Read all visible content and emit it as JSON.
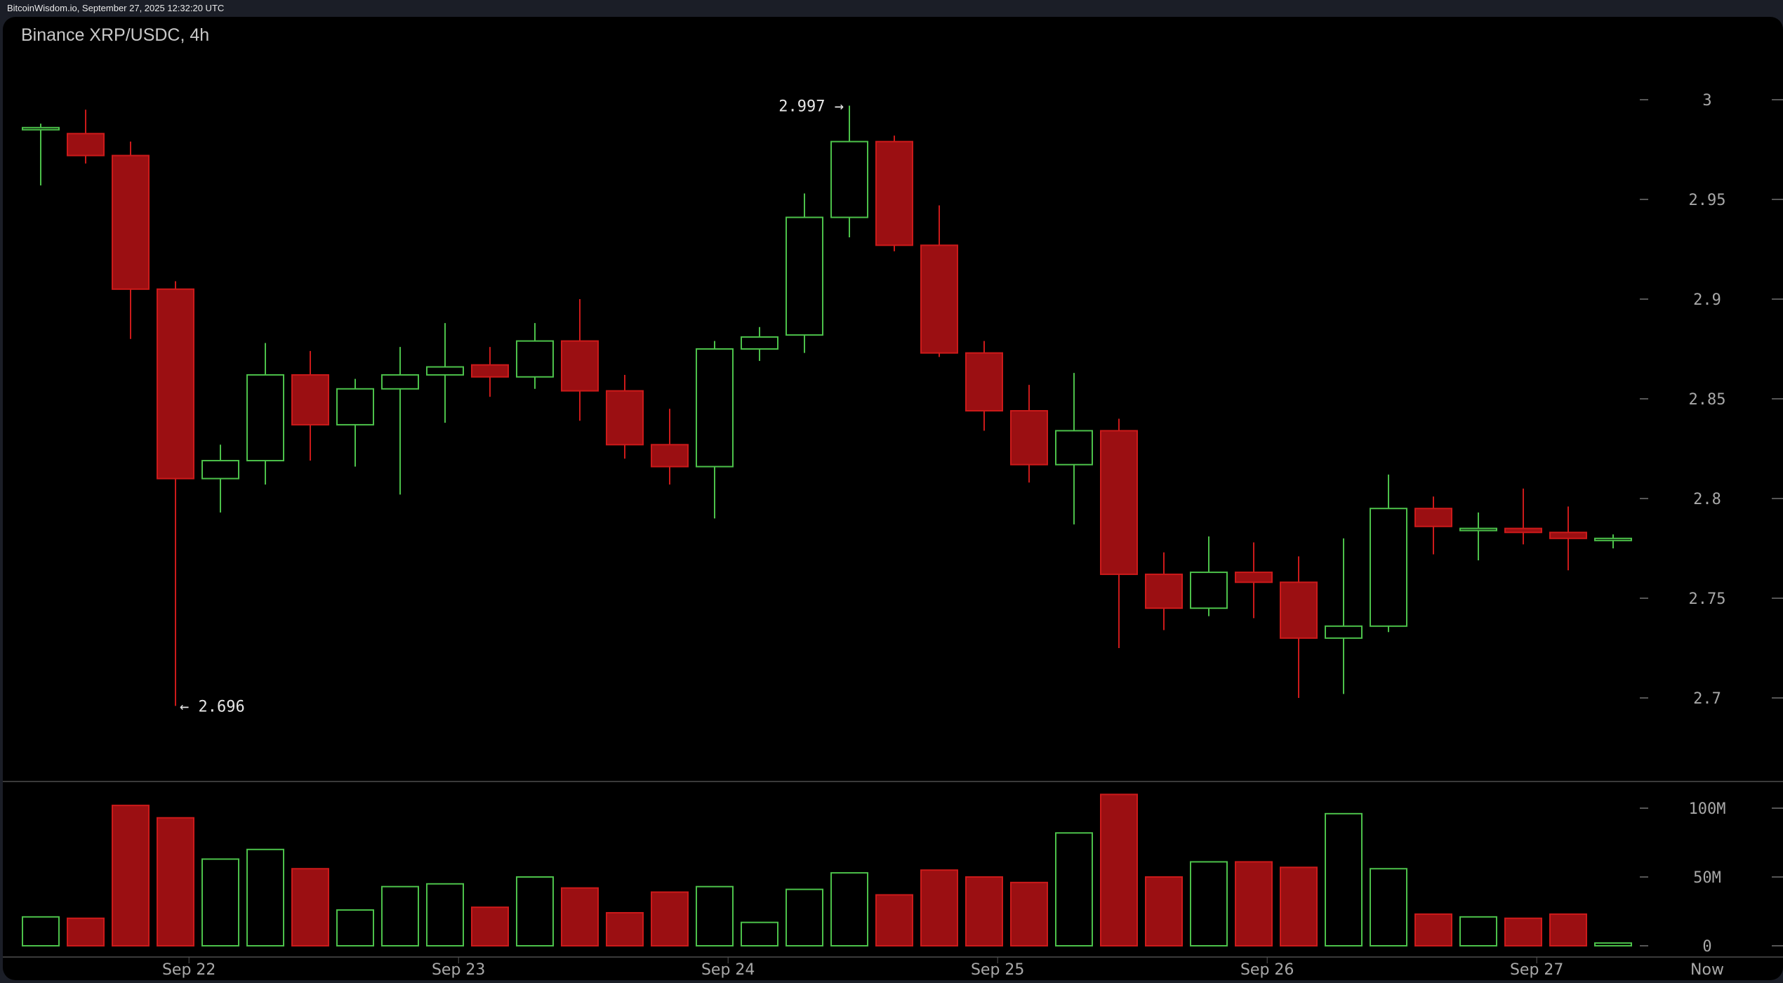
{
  "header": {
    "source_line": "BitcoinWisdom.io, September 27, 2025 12:32:20 UTC",
    "chart_title": "Binance XRP/USDC, 4h"
  },
  "colors": {
    "up": "#4cc14a",
    "down": "#cc1a1a",
    "down_fill": "#9b0f12",
    "background": "#000000",
    "frame": "#1b1e27",
    "axis_text": "#a8a8a8"
  },
  "annotations": {
    "high_label": "2.997 →",
    "low_label": "← 2.696"
  },
  "chart_data": {
    "type": "candlestick",
    "title": "Binance XRP/USDC, 4h",
    "xlabel": "",
    "ylabel": "",
    "price_axis": {
      "ticks": [
        3,
        2.95,
        2.9,
        2.85,
        2.8,
        2.75,
        2.7
      ],
      "tick_labels": [
        "3",
        "2.95",
        "2.9",
        "2.85",
        "2.8",
        "2.75",
        "2.7"
      ]
    },
    "volume_axis": {
      "ticks": [
        100,
        50,
        0
      ],
      "tick_labels": [
        "100M",
        "50M",
        "0"
      ]
    },
    "x_tick_labels": [
      "Sep 22",
      "Sep 23",
      "Sep 24",
      "Sep 25",
      "Sep 26",
      "Sep 27",
      "Now"
    ],
    "x_tick_candle_index": [
      3.3,
      9.3,
      15.3,
      21.3,
      27.3,
      33.3
    ],
    "grid": false,
    "annotations": [
      {
        "label": "2.997",
        "type": "high",
        "candle": 18
      },
      {
        "label": "2.696",
        "type": "low",
        "candle": 3
      }
    ],
    "candles": [
      {
        "o": 2.986,
        "h": 2.988,
        "l": 2.957,
        "c": 2.986,
        "v": 21
      },
      {
        "o": 2.983,
        "h": 2.995,
        "l": 2.968,
        "c": 2.972,
        "v": 20
      },
      {
        "o": 2.972,
        "h": 2.979,
        "l": 2.88,
        "c": 2.905,
        "v": 102
      },
      {
        "o": 2.905,
        "h": 2.909,
        "l": 2.696,
        "c": 2.81,
        "v": 93
      },
      {
        "o": 2.81,
        "h": 2.827,
        "l": 2.793,
        "c": 2.819,
        "v": 63
      },
      {
        "o": 2.819,
        "h": 2.878,
        "l": 2.807,
        "c": 2.862,
        "v": 70
      },
      {
        "o": 2.862,
        "h": 2.874,
        "l": 2.819,
        "c": 2.837,
        "v": 56
      },
      {
        "o": 2.837,
        "h": 2.86,
        "l": 2.816,
        "c": 2.855,
        "v": 26
      },
      {
        "o": 2.855,
        "h": 2.876,
        "l": 2.802,
        "c": 2.862,
        "v": 43
      },
      {
        "o": 2.862,
        "h": 2.888,
        "l": 2.838,
        "c": 2.866,
        "v": 45
      },
      {
        "o": 2.867,
        "h": 2.876,
        "l": 2.851,
        "c": 2.861,
        "v": 28
      },
      {
        "o": 2.861,
        "h": 2.888,
        "l": 2.855,
        "c": 2.879,
        "v": 50
      },
      {
        "o": 2.879,
        "h": 2.9,
        "l": 2.839,
        "c": 2.854,
        "v": 42
      },
      {
        "o": 2.854,
        "h": 2.862,
        "l": 2.82,
        "c": 2.827,
        "v": 24
      },
      {
        "o": 2.827,
        "h": 2.845,
        "l": 2.807,
        "c": 2.816,
        "v": 39
      },
      {
        "o": 2.816,
        "h": 2.879,
        "l": 2.79,
        "c": 2.875,
        "v": 43
      },
      {
        "o": 2.875,
        "h": 2.886,
        "l": 2.869,
        "c": 2.881,
        "v": 17
      },
      {
        "o": 2.882,
        "h": 2.953,
        "l": 2.873,
        "c": 2.941,
        "v": 41
      },
      {
        "o": 2.941,
        "h": 2.997,
        "l": 2.931,
        "c": 2.979,
        "v": 53
      },
      {
        "o": 2.979,
        "h": 2.982,
        "l": 2.924,
        "c": 2.927,
        "v": 37
      },
      {
        "o": 2.927,
        "h": 2.947,
        "l": 2.871,
        "c": 2.873,
        "v": 55
      },
      {
        "o": 2.873,
        "h": 2.879,
        "l": 2.834,
        "c": 2.844,
        "v": 50
      },
      {
        "o": 2.844,
        "h": 2.857,
        "l": 2.808,
        "c": 2.817,
        "v": 46
      },
      {
        "o": 2.817,
        "h": 2.863,
        "l": 2.787,
        "c": 2.834,
        "v": 82
      },
      {
        "o": 2.834,
        "h": 2.84,
        "l": 2.725,
        "c": 2.762,
        "v": 110
      },
      {
        "o": 2.762,
        "h": 2.773,
        "l": 2.734,
        "c": 2.745,
        "v": 50
      },
      {
        "o": 2.745,
        "h": 2.781,
        "l": 2.741,
        "c": 2.763,
        "v": 61
      },
      {
        "o": 2.763,
        "h": 2.778,
        "l": 2.74,
        "c": 2.758,
        "v": 61
      },
      {
        "o": 2.758,
        "h": 2.771,
        "l": 2.7,
        "c": 2.73,
        "v": 57
      },
      {
        "o": 2.73,
        "h": 2.78,
        "l": 2.702,
        "c": 2.736,
        "v": 96
      },
      {
        "o": 2.736,
        "h": 2.812,
        "l": 2.733,
        "c": 2.795,
        "v": 56
      },
      {
        "o": 2.795,
        "h": 2.801,
        "l": 2.772,
        "c": 2.786,
        "v": 23
      },
      {
        "o": 2.785,
        "h": 2.793,
        "l": 2.769,
        "c": 2.785,
        "v": 21
      },
      {
        "o": 2.785,
        "h": 2.805,
        "l": 2.777,
        "c": 2.783,
        "v": 20
      },
      {
        "o": 2.783,
        "h": 2.796,
        "l": 2.764,
        "c": 2.78,
        "v": 23
      },
      {
        "o": 2.78,
        "h": 2.782,
        "l": 2.775,
        "c": 2.78,
        "v": 2
      }
    ]
  }
}
